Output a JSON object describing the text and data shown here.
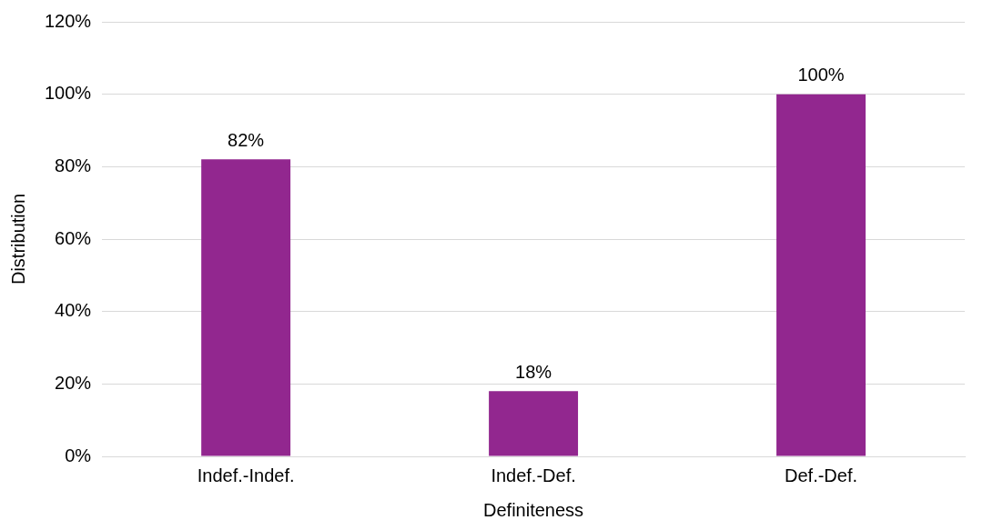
{
  "chart_data": {
    "type": "bar",
    "xlabel": "Definiteness",
    "ylabel": "Distribution",
    "categories": [
      "Indef.-Indef.",
      "Indef.-Def.",
      "Def.-Def."
    ],
    "values": [
      82,
      18,
      100
    ],
    "color": "#92278f",
    "ylim": [
      0,
      120
    ],
    "yticks": [
      {
        "value": 0,
        "label": "0%"
      },
      {
        "value": 20,
        "label": "20%"
      },
      {
        "value": 40,
        "label": "40%"
      },
      {
        "value": 60,
        "label": "60%"
      },
      {
        "value": 80,
        "label": "80%"
      },
      {
        "value": 100,
        "label": "100%"
      },
      {
        "value": 120,
        "label": "120%"
      }
    ],
    "grid": "y",
    "legend": false,
    "value_labels": [
      "82%",
      "18%",
      "100%"
    ]
  }
}
